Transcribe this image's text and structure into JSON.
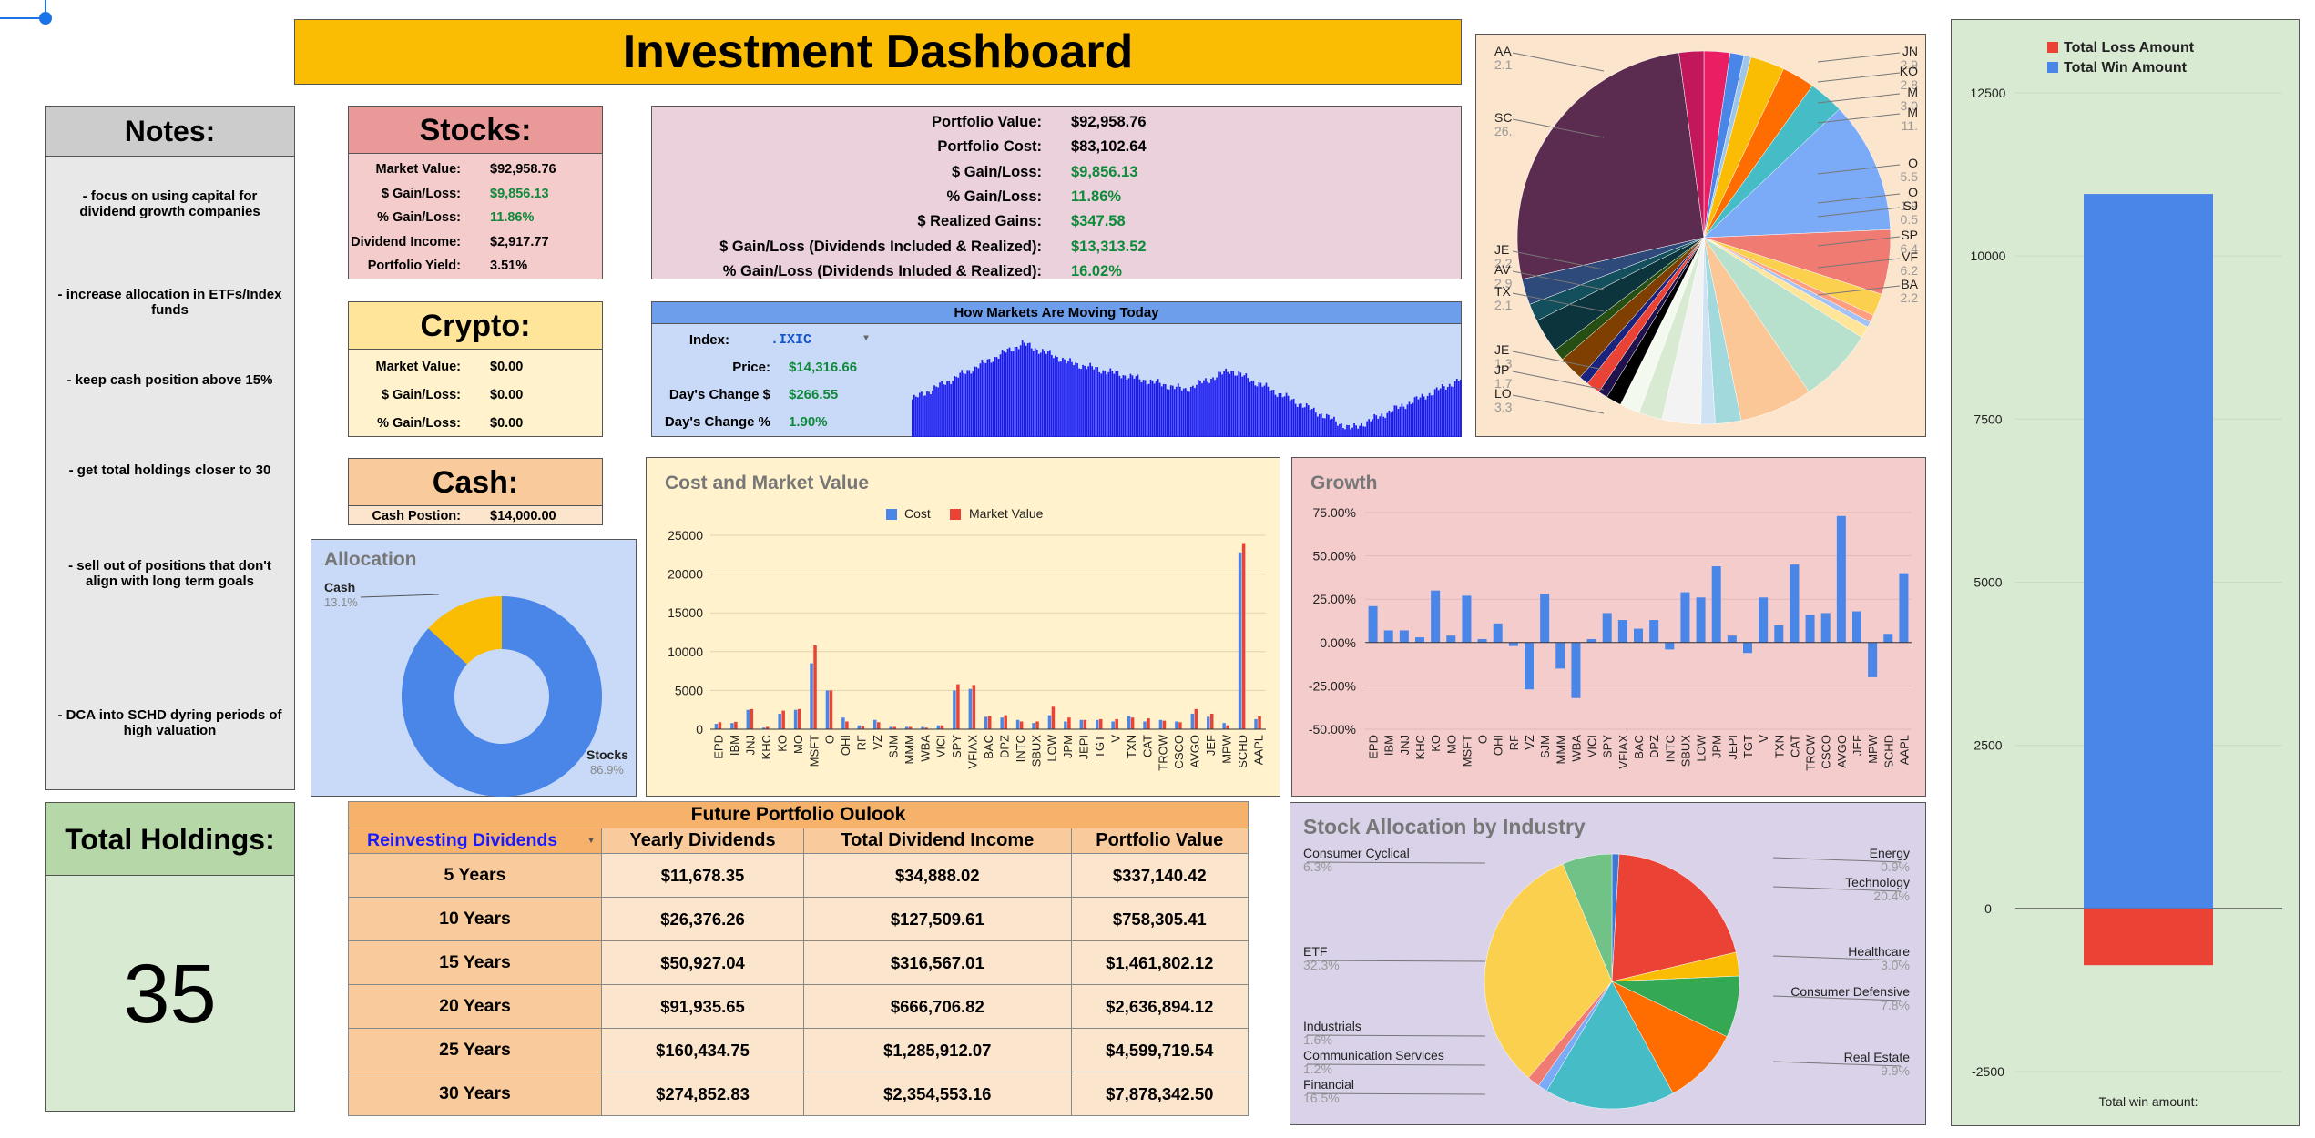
{
  "title": "Investment Dashboard",
  "notes": {
    "title": "Notes:",
    "items": [
      "- focus on using capital for dividend growth companies",
      "- increase allocation in ETFs/Index funds",
      "- keep cash position above 15%",
      "- get total holdings closer to 30",
      "- sell out of positions that don't align with long term goals",
      "- DCA into SCHD dyring periods of high valuation"
    ]
  },
  "holdings": {
    "title": "Total Holdings:",
    "value": "35"
  },
  "stocks": {
    "title": "Stocks:",
    "rows": [
      {
        "k": "Market Value:",
        "v": "$92,958.76",
        "green": false
      },
      {
        "k": "$ Gain/Loss:",
        "v": "$9,856.13",
        "green": true
      },
      {
        "k": "% Gain/Loss:",
        "v": "11.86%",
        "green": true
      },
      {
        "k": "Dividend Income:",
        "v": "$2,917.77",
        "green": false
      },
      {
        "k": "Portfolio Yield:",
        "v": "3.51%",
        "green": false
      }
    ]
  },
  "crypto": {
    "title": "Crypto:",
    "rows": [
      {
        "k": "Market Value:",
        "v": "$0.00"
      },
      {
        "k": "$ Gain/Loss:",
        "v": "$0.00"
      },
      {
        "k": "% Gain/Loss:",
        "v": "$0.00"
      }
    ]
  },
  "cash": {
    "title": "Cash:",
    "k": "Cash Postion:",
    "v": "$14,000.00"
  },
  "portfolio": {
    "rows": [
      {
        "k": "Portfolio Value:",
        "v": "$92,958.76",
        "green": false
      },
      {
        "k": "Portfolio Cost:",
        "v": "$83,102.64",
        "green": false
      },
      {
        "k": "$ Gain/Loss:",
        "v": "$9,856.13",
        "green": true
      },
      {
        "k": "% Gain/Loss:",
        "v": "11.86%",
        "green": true
      },
      {
        "k": "$ Realized Gains:",
        "v": "$347.58",
        "green": true
      },
      {
        "k": "$ Gain/Loss (Dividends Included & Realized):",
        "v": "$13,313.52",
        "green": true
      },
      {
        "k": "% Gain/Loss (Dividends Inluded & Realized):",
        "v": "16.02%",
        "green": true
      }
    ]
  },
  "markets": {
    "title": "How Markets Are Moving Today",
    "index_label": "Index:",
    "index_value": ".IXIC",
    "rows": [
      {
        "k": "Price:",
        "v": "$14,316.66"
      },
      {
        "k": "Day's Change $",
        "v": "$266.55"
      },
      {
        "k": "Day's Change %",
        "v": "1.90%"
      }
    ]
  },
  "outlook": {
    "title": "Future Portfolio Oulook",
    "dropdown": "Reinvesting Dividends",
    "headers": [
      "Yearly Dividends",
      "Total Dividend Income",
      "Portfolio Value"
    ],
    "rows": [
      [
        "5 Years",
        "$11,678.35",
        "$34,888.02",
        "$337,140.42"
      ],
      [
        "10 Years",
        "$26,376.26",
        "$127,509.61",
        "$758,305.41"
      ],
      [
        "15 Years",
        "$50,927.04",
        "$316,567.01",
        "$1,461,802.12"
      ],
      [
        "20 Years",
        "$91,935.65",
        "$666,706.82",
        "$2,636,894.12"
      ],
      [
        "25 Years",
        "$160,434.75",
        "$1,285,912.07",
        "$4,599,719.54"
      ],
      [
        "30 Years",
        "$274,852.83",
        "$2,354,553.16",
        "$7,878,342.50"
      ]
    ]
  },
  "colors": {
    "blue": "#4a86e8",
    "red": "#ea4335",
    "yellow": "#fbbc04",
    "green_text": "#0f8a3a",
    "title_bg": "#fbbc04"
  },
  "chart_data": [
    {
      "id": "allocation",
      "type": "pie",
      "title": "Allocation",
      "donut": true,
      "labels": [
        "Stocks",
        "Cash"
      ],
      "values": [
        86.9,
        13.1
      ],
      "label_text": [
        "86.9%",
        "13.1%"
      ]
    },
    {
      "id": "cost_market",
      "type": "bar",
      "title": "Cost and Market Value",
      "legend": "top",
      "categories": [
        "EPD",
        "IBM",
        "JNJ",
        "KHC",
        "KO",
        "MO",
        "MSFT",
        "O",
        "OHI",
        "RF",
        "VZ",
        "SJM",
        "MMM",
        "WBA",
        "VICI",
        "SPY",
        "VFIAX",
        "BAC",
        "DPZ",
        "INTC",
        "SBUX",
        "LOW",
        "JPM",
        "JEPI",
        "TGT",
        "V",
        "TXN",
        "CAT",
        "TROW",
        "CSCO",
        "AVGO",
        "JEF",
        "MPW",
        "SCHD",
        "AAPL"
      ],
      "series": [
        {
          "name": "Cost",
          "values": [
            700,
            800,
            2500,
            200,
            2000,
            2500,
            8500,
            5000,
            1500,
            500,
            1200,
            300,
            300,
            300,
            500,
            5000,
            5200,
            1600,
            1500,
            1200,
            800,
            1800,
            1000,
            1200,
            1200,
            1000,
            1700,
            1000,
            1200,
            1000,
            2000,
            1600,
            800,
            22800,
            1300
          ]
        },
        {
          "name": "Market Value",
          "values": [
            900,
            950,
            2600,
            300,
            2400,
            2600,
            10800,
            5000,
            1000,
            400,
            900,
            300,
            300,
            200,
            500,
            5800,
            5700,
            1700,
            1800,
            1000,
            1000,
            2900,
            1500,
            1200,
            1300,
            1300,
            1500,
            1400,
            1100,
            900,
            2600,
            2000,
            500,
            24000,
            1700
          ]
        }
      ],
      "yticks": [
        0,
        5000,
        10000,
        15000,
        20000,
        25000
      ],
      "ylim": [
        0,
        25000
      ]
    },
    {
      "id": "growth",
      "type": "bar",
      "title": "Growth",
      "categories": [
        "EPD",
        "IBM",
        "JNJ",
        "KHC",
        "KO",
        "MO",
        "MSFT",
        "O",
        "OHI",
        "RF",
        "VZ",
        "SJM",
        "MMM",
        "WBA",
        "VICI",
        "SPY",
        "VFIAX",
        "BAC",
        "DPZ",
        "INTC",
        "SBUX",
        "LOW",
        "JPM",
        "JEPI",
        "TGT",
        "V",
        "TXN",
        "CAT",
        "TROW",
        "CSCO",
        "AVGO",
        "JEF",
        "MPW",
        "SCHD",
        "AAPL"
      ],
      "values": [
        21,
        7,
        7,
        3,
        30,
        4,
        27,
        2,
        11,
        -2,
        -27,
        28,
        -15,
        -32,
        2,
        17,
        13,
        8,
        13,
        -4,
        29,
        26,
        44,
        4,
        -6,
        26,
        10,
        45,
        16,
        17,
        73,
        18,
        -20,
        5,
        40
      ],
      "yticks": [
        "75.00%",
        "50.00%",
        "25.00%",
        "0.00%",
        "-25.00%",
        "-50.00%"
      ],
      "ylim": [
        -50,
        75
      ]
    },
    {
      "id": "holdings_pie",
      "type": "pie",
      "labels": [
        "AA",
        "JN",
        "KO",
        "M",
        "M",
        "SC",
        "O",
        "O",
        "SJ",
        "JE",
        "AV",
        "TX",
        "JE",
        "JP",
        "LO",
        "SP",
        "VF",
        "BA"
      ],
      "label_values": [
        "2.1",
        "2.9",
        "2.8",
        "3.0",
        "11.",
        "26.",
        "5.5",
        "1.9",
        "0.5",
        "2.2",
        "2.9",
        "2.1",
        "1.3",
        "1.7",
        "3.3",
        "6.4",
        "6.2",
        "2.2"
      ]
    },
    {
      "id": "industry",
      "type": "pie",
      "title": "Stock Allocation by Industry",
      "labels": [
        "Energy",
        "Technology",
        "Healthcare",
        "Consumer Defensive",
        "Real Estate",
        "Financial",
        "Communication Services",
        "Industrials",
        "ETF",
        "Consumer Cyclical"
      ],
      "values": [
        0.9,
        20.4,
        3.0,
        7.8,
        9.9,
        16.5,
        1.2,
        1.6,
        32.3,
        6.3
      ],
      "label_text": [
        "0.9%",
        "20.4%",
        "3.0%",
        "7.8%",
        "9.9%",
        "16.5%",
        "1.2%",
        "1.6%",
        "32.3%",
        "6.3%"
      ]
    },
    {
      "id": "winloss",
      "type": "bar",
      "series": [
        {
          "name": "Total Loss Amount",
          "values": [
            -870
          ]
        },
        {
          "name": "Total Win Amount",
          "values": [
            10950
          ]
        }
      ],
      "yticks": [
        "12500",
        "10000",
        "7500",
        "5000",
        "2500",
        "0",
        "-2500"
      ],
      "ylim": [
        -2500,
        12500
      ],
      "xlabel": "Total win amount:"
    }
  ]
}
